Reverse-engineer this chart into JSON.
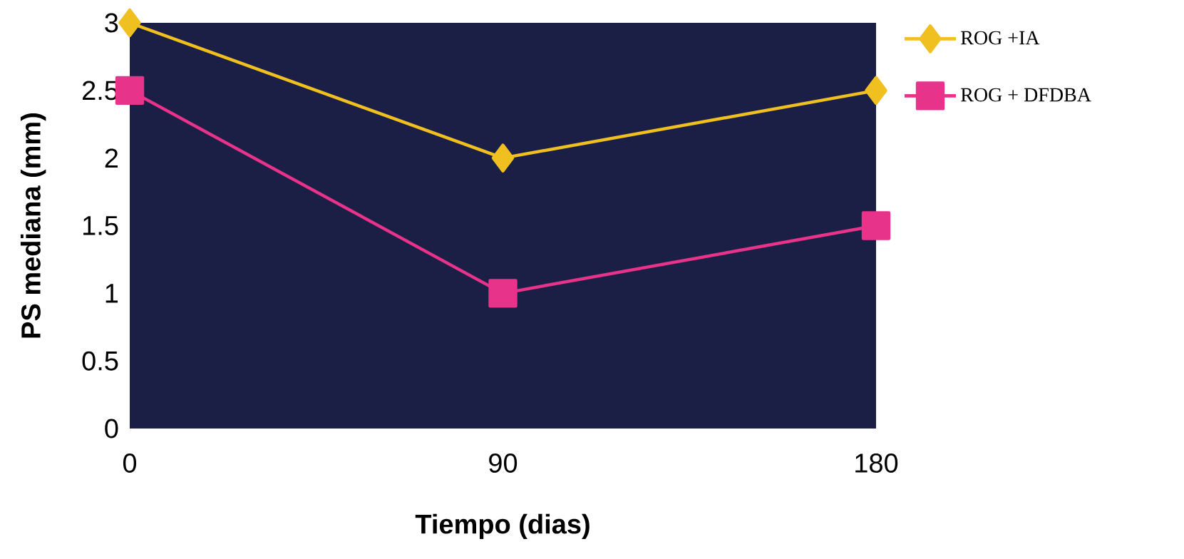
{
  "chart_data": {
    "type": "line",
    "xlabel": "Tiempo (dias)",
    "ylabel": "PS mediana (mm)",
    "categories": [
      "0",
      "90",
      "180"
    ],
    "series": [
      {
        "name": "ROG +IA",
        "color": "#f0c020",
        "values": [
          3,
          2,
          2.5
        ],
        "marker": "diamond"
      },
      {
        "name": "ROG + DFDBA",
        "color": "#e8338a",
        "values": [
          2.5,
          1,
          1.5
        ],
        "marker": "square"
      }
    ],
    "ylim": [
      0,
      3
    ],
    "yticks": [
      0,
      0.5,
      1,
      1.5,
      2,
      2.5,
      3
    ],
    "grid": false,
    "legend": "top right",
    "line_style": "solid"
  }
}
